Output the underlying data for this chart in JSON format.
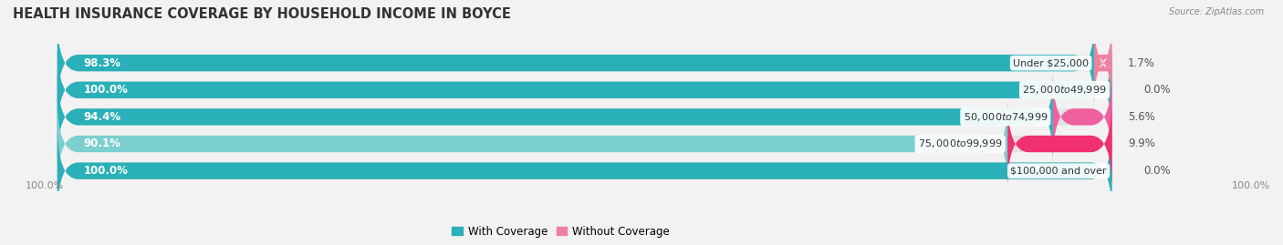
{
  "title": "HEALTH INSURANCE COVERAGE BY HOUSEHOLD INCOME IN BOYCE",
  "source": "Source: ZipAtlas.com",
  "categories": [
    "Under $25,000",
    "$25,000 to $49,999",
    "$50,000 to $74,999",
    "$75,000 to $99,999",
    "$100,000 and over"
  ],
  "with_coverage": [
    98.3,
    100.0,
    94.4,
    90.1,
    100.0
  ],
  "without_coverage": [
    1.7,
    0.0,
    5.6,
    9.9,
    0.0
  ],
  "color_with": [
    "#2ab0b8",
    "#2ab0b8",
    "#2ab0b8",
    "#7bcfcf",
    "#2ab0b8"
  ],
  "color_without": [
    "#f080a0",
    "#f4a0b8",
    "#f060a0",
    "#f03070",
    "#f4b0c0"
  ],
  "color_with_label": [
    "white",
    "white",
    "white",
    "white",
    "white"
  ],
  "bg_color": "#f2f2f2",
  "bar_bg_color": "#e2e2e2",
  "title_fontsize": 10.5,
  "label_fontsize": 8.5,
  "cat_fontsize": 8.0,
  "legend_fontsize": 8.5,
  "axis_label_fontsize": 8,
  "bar_height": 0.62,
  "x_left_label": "100.0%",
  "x_right_label": "100.0%"
}
